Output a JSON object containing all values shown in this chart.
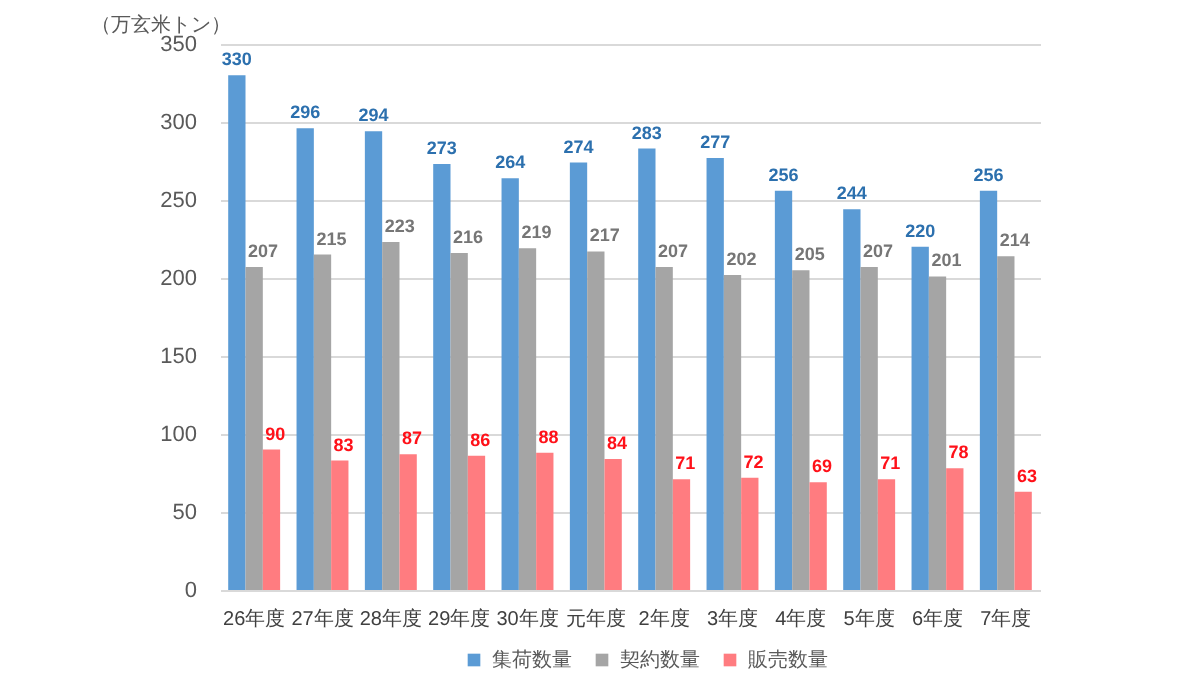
{
  "chart_data": {
    "type": "bar",
    "ylabel": "（万玄米トン）",
    "categories": [
      "26年度",
      "27年度",
      "28年度",
      "29年度",
      "30年度",
      "元年度",
      "2年度",
      "3年度",
      "4年度",
      "5年度",
      "6年度",
      "7年度"
    ],
    "series": [
      {
        "name": "集荷数量",
        "color": "#5b9bd5",
        "values": [
          330,
          296,
          294,
          273,
          264,
          274,
          283,
          277,
          256,
          244,
          220,
          256
        ]
      },
      {
        "name": "契約数量",
        "color": "#a5a5a5",
        "values": [
          207,
          215,
          223,
          216,
          219,
          217,
          207,
          202,
          205,
          207,
          201,
          214
        ]
      },
      {
        "name": "販売数量",
        "color": "#ff7c80",
        "values": [
          90,
          83,
          87,
          86,
          88,
          84,
          71,
          72,
          69,
          71,
          78,
          63
        ]
      }
    ],
    "ylim": [
      0,
      350
    ],
    "yticks": [
      0,
      50,
      100,
      150,
      200,
      250,
      300,
      350
    ],
    "grid": "y",
    "legend": "bottom",
    "data_labels": true
  }
}
